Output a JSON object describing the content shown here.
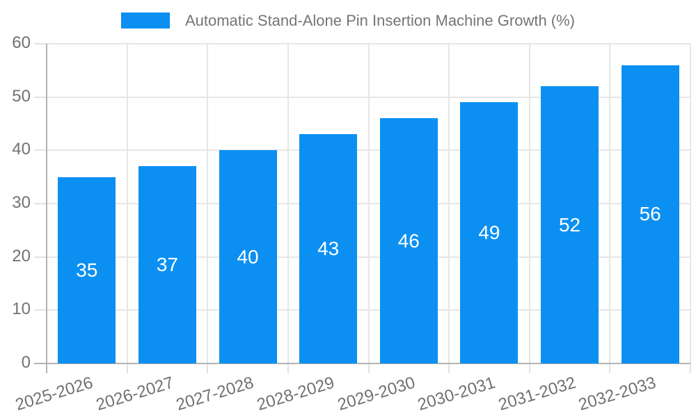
{
  "legend": {
    "label": "Automatic Stand-Alone Pin Insertion Machine Growth (%)"
  },
  "chart_data": {
    "type": "bar",
    "title": "Automatic Stand-Alone Pin Insertion Machine Growth (%)",
    "categories": [
      "2025-2026",
      "2026-2027",
      "2027-2028",
      "2028-2029",
      "2029-2030",
      "2030-2031",
      "2031-2032",
      "2032-2033"
    ],
    "values": [
      35,
      37,
      40,
      43,
      46,
      49,
      52,
      56
    ],
    "xlabel": "",
    "ylabel": "",
    "ylim": [
      0,
      60
    ],
    "ytick_step": 10,
    "yticks": [
      0,
      10,
      20,
      30,
      40,
      50,
      60
    ],
    "grid": true,
    "value_labels": "inside-center",
    "legend_position": "top-center",
    "x_label_rotation_deg": -17
  },
  "colors": {
    "bar": "#0b90f2",
    "value_label": "#ffffff",
    "axis_text": "#717171",
    "legend_text": "#757575",
    "gridline": "#e6e6e6",
    "tick": "#e2e2e2",
    "axis_line": "#b3b3b3",
    "background": "#ffffff"
  }
}
